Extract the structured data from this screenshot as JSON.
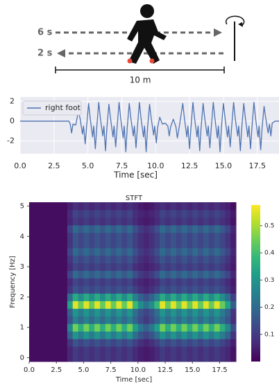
{
  "diagram": {
    "labels": [
      "6 s",
      "2 s",
      "10 m"
    ]
  },
  "chart_data": [
    {
      "type": "line",
      "xlabel": "Time [sec]",
      "x": [
        0,
        3.6,
        3.7,
        3.8,
        3.9,
        4.1,
        4.3,
        4.42,
        4.6,
        4.68,
        4.8,
        4.9,
        5.05,
        5.17,
        5.35,
        5.43,
        5.55,
        5.65,
        5.8,
        5.92,
        6.1,
        6.18,
        6.3,
        6.4,
        6.55,
        6.67,
        6.85,
        6.93,
        7.05,
        7.15,
        7.3,
        7.42,
        7.6,
        7.68,
        7.8,
        7.9,
        8.05,
        8.17,
        8.35,
        8.43,
        8.55,
        8.65,
        8.8,
        8.92,
        9.1,
        9.18,
        9.3,
        9.4,
        9.55,
        9.67,
        9.85,
        9.93,
        10.05,
        10.15,
        10.3,
        10.5,
        10.7,
        10.9,
        11.0,
        11.1,
        11.3,
        11.5,
        11.6,
        11.75,
        12.0,
        12.12,
        12.3,
        12.38,
        12.5,
        12.6,
        12.75,
        12.87,
        13.05,
        13.13,
        13.25,
        13.35,
        13.5,
        13.62,
        13.8,
        13.88,
        14.0,
        14.1,
        14.25,
        14.37,
        14.55,
        14.63,
        14.75,
        14.85,
        15.0,
        15.12,
        15.3,
        15.38,
        15.5,
        15.6,
        15.75,
        15.87,
        16.05,
        16.13,
        16.25,
        16.35,
        16.5,
        16.62,
        16.8,
        16.88,
        17.0,
        17.1,
        17.25,
        17.37,
        17.55,
        17.63,
        17.75,
        17.85,
        18.0,
        18.12,
        18.3,
        18.4,
        18.5,
        18.6,
        18.8,
        19.1
      ],
      "series": [
        {
          "name": "right foot",
          "color": "#4c72b0",
          "values": [
            0,
            0,
            -0.3,
            -1.2,
            -0.3,
            -0.4,
            1.0,
            0.3,
            -1.3,
            -0.5,
            -2.3,
            -0.7,
            1.8,
            0.3,
            -1.6,
            -0.5,
            -2.8,
            -0.7,
            1.9,
            0.3,
            -1.5,
            -0.5,
            -3.0,
            -0.7,
            1.7,
            0.3,
            -1.6,
            -0.5,
            -2.6,
            -0.7,
            1.9,
            0.3,
            -1.7,
            -0.5,
            -3.1,
            -0.7,
            1.8,
            0.3,
            -1.5,
            -0.5,
            -2.7,
            -0.7,
            1.9,
            0.3,
            -1.6,
            -0.5,
            -3.1,
            -0.7,
            1.7,
            0.3,
            -1.4,
            -0.5,
            -2.2,
            -0.6,
            0.4,
            -0.3,
            -0.2,
            -0.5,
            -1.5,
            -0.6,
            0.2,
            -0.6,
            -1.7,
            -0.5,
            1.8,
            0.3,
            -1.6,
            -0.5,
            -2.8,
            -0.7,
            1.9,
            0.3,
            -1.6,
            -0.5,
            -3.0,
            -0.7,
            1.8,
            0.3,
            -1.5,
            -0.5,
            -2.7,
            -0.7,
            1.9,
            0.3,
            -1.7,
            -0.5,
            -3.1,
            -0.7,
            1.8,
            0.3,
            -1.6,
            -0.5,
            -2.6,
            -0.7,
            1.9,
            0.3,
            -1.5,
            -0.5,
            -3.0,
            -0.7,
            1.8,
            0.3,
            -1.6,
            -0.5,
            -2.8,
            -0.7,
            1.9,
            0.3,
            -1.6,
            -0.5,
            -2.9,
            -0.7,
            1.5,
            0.3,
            -1.2,
            -0.3,
            -1.5,
            -0.2,
            0,
            0
          ]
        }
      ],
      "xlim": [
        0,
        19.1
      ],
      "ylim": [
        -3.3,
        2.45
      ],
      "xticks": [
        {
          "value": 0,
          "label": "0.0"
        },
        2.5,
        {
          "value": 5,
          "label": "5.0"
        },
        7.5,
        {
          "value": 10,
          "label": "10.0"
        },
        12.5,
        {
          "value": 15,
          "label": "15.0"
        },
        17.5
      ],
      "yticks": [
        -2,
        0,
        2
      ],
      "grid": true,
      "legend": "upper left"
    },
    {
      "type": "heatmap",
      "title": "STFT",
      "xlabel": "Time [sec]",
      "ylabel": "Frequency [Hz]",
      "x": [
        0.25,
        0.75,
        1.25,
        1.75,
        2.25,
        2.75,
        3.25,
        3.75,
        4.25,
        4.75,
        5.25,
        5.75,
        6.25,
        6.75,
        7.25,
        7.75,
        8.25,
        8.75,
        9.25,
        9.75,
        10.25,
        10.75,
        11.25,
        11.75,
        12.25,
        12.75,
        13.25,
        13.75,
        14.25,
        14.75,
        15.25,
        15.75,
        16.25,
        16.75,
        17.25,
        17.75,
        18.25,
        18.75
      ],
      "y": [
        0,
        0.25,
        0.5,
        0.75,
        1,
        1.25,
        1.5,
        1.75,
        2,
        2.25,
        2.5,
        2.75,
        3,
        3.25,
        3.5,
        3.75,
        4,
        4.25,
        4.5,
        4.75,
        5
      ],
      "z": [
        [
          0.02,
          0.02,
          0.02,
          0.02,
          0.02,
          0.02,
          0.02,
          0.06,
          0.1,
          0.08,
          0.1,
          0.08,
          0.1,
          0.08,
          0.1,
          0.08,
          0.1,
          0.08,
          0.1,
          0.07,
          0.05,
          0.04,
          0.05,
          0.07,
          0.1,
          0.08,
          0.1,
          0.08,
          0.1,
          0.08,
          0.1,
          0.08,
          0.1,
          0.08,
          0.1,
          0.08,
          0.06,
          0.03
        ],
        [
          0.02,
          0.02,
          0.02,
          0.02,
          0.02,
          0.02,
          0.02,
          0.06,
          0.1,
          0.08,
          0.1,
          0.08,
          0.1,
          0.08,
          0.1,
          0.08,
          0.1,
          0.08,
          0.1,
          0.07,
          0.05,
          0.04,
          0.05,
          0.07,
          0.1,
          0.08,
          0.1,
          0.08,
          0.1,
          0.08,
          0.1,
          0.08,
          0.1,
          0.08,
          0.1,
          0.08,
          0.06,
          0.03
        ],
        [
          0.02,
          0.02,
          0.02,
          0.02,
          0.02,
          0.02,
          0.02,
          0.09,
          0.15,
          0.12,
          0.15,
          0.12,
          0.15,
          0.12,
          0.15,
          0.12,
          0.15,
          0.12,
          0.15,
          0.11,
          0.08,
          0.06,
          0.08,
          0.11,
          0.15,
          0.12,
          0.15,
          0.12,
          0.15,
          0.12,
          0.15,
          0.12,
          0.15,
          0.12,
          0.15,
          0.12,
          0.09,
          0.05
        ],
        [
          0.02,
          0.02,
          0.02,
          0.02,
          0.02,
          0.02,
          0.02,
          0.18,
          0.3,
          0.24,
          0.3,
          0.24,
          0.3,
          0.24,
          0.3,
          0.24,
          0.3,
          0.24,
          0.3,
          0.21,
          0.15,
          0.12,
          0.15,
          0.21,
          0.3,
          0.24,
          0.3,
          0.24,
          0.3,
          0.24,
          0.3,
          0.24,
          0.3,
          0.24,
          0.3,
          0.24,
          0.18,
          0.09
        ],
        [
          0.02,
          0.02,
          0.02,
          0.02,
          0.02,
          0.02,
          0.02,
          0.27,
          0.45,
          0.36,
          0.45,
          0.36,
          0.45,
          0.36,
          0.45,
          0.36,
          0.45,
          0.36,
          0.45,
          0.32,
          0.23,
          0.18,
          0.23,
          0.32,
          0.45,
          0.36,
          0.45,
          0.36,
          0.45,
          0.36,
          0.45,
          0.36,
          0.45,
          0.36,
          0.45,
          0.36,
          0.27,
          0.14
        ],
        [
          0.02,
          0.02,
          0.02,
          0.02,
          0.02,
          0.02,
          0.02,
          0.15,
          0.25,
          0.2,
          0.25,
          0.2,
          0.25,
          0.2,
          0.25,
          0.2,
          0.25,
          0.2,
          0.25,
          0.18,
          0.13,
          0.1,
          0.13,
          0.18,
          0.25,
          0.2,
          0.25,
          0.2,
          0.25,
          0.2,
          0.25,
          0.2,
          0.25,
          0.2,
          0.25,
          0.2,
          0.15,
          0.08
        ],
        [
          0.02,
          0.02,
          0.02,
          0.02,
          0.02,
          0.02,
          0.02,
          0.18,
          0.3,
          0.24,
          0.3,
          0.24,
          0.3,
          0.24,
          0.3,
          0.24,
          0.3,
          0.24,
          0.3,
          0.21,
          0.15,
          0.12,
          0.15,
          0.21,
          0.3,
          0.24,
          0.3,
          0.24,
          0.3,
          0.24,
          0.3,
          0.24,
          0.3,
          0.24,
          0.3,
          0.24,
          0.18,
          0.09
        ],
        [
          0.02,
          0.02,
          0.02,
          0.02,
          0.02,
          0.02,
          0.02,
          0.33,
          0.55,
          0.44,
          0.55,
          0.44,
          0.55,
          0.44,
          0.55,
          0.44,
          0.55,
          0.44,
          0.55,
          0.39,
          0.28,
          0.22,
          0.28,
          0.39,
          0.55,
          0.44,
          0.55,
          0.44,
          0.55,
          0.44,
          0.55,
          0.44,
          0.55,
          0.44,
          0.55,
          0.44,
          0.33,
          0.17
        ],
        [
          0.02,
          0.02,
          0.02,
          0.02,
          0.02,
          0.02,
          0.02,
          0.21,
          0.35,
          0.28,
          0.35,
          0.28,
          0.35,
          0.28,
          0.35,
          0.28,
          0.35,
          0.28,
          0.35,
          0.25,
          0.18,
          0.14,
          0.18,
          0.25,
          0.35,
          0.28,
          0.35,
          0.28,
          0.35,
          0.28,
          0.35,
          0.28,
          0.35,
          0.28,
          0.35,
          0.28,
          0.21,
          0.11
        ],
        [
          0.02,
          0.02,
          0.02,
          0.02,
          0.02,
          0.02,
          0.02,
          0.09,
          0.15,
          0.12,
          0.15,
          0.12,
          0.15,
          0.12,
          0.15,
          0.12,
          0.15,
          0.12,
          0.15,
          0.11,
          0.08,
          0.06,
          0.08,
          0.11,
          0.15,
          0.12,
          0.15,
          0.12,
          0.15,
          0.12,
          0.15,
          0.12,
          0.15,
          0.12,
          0.15,
          0.12,
          0.09,
          0.05
        ],
        [
          0.02,
          0.02,
          0.02,
          0.02,
          0.02,
          0.02,
          0.02,
          0.07,
          0.12,
          0.1,
          0.12,
          0.1,
          0.12,
          0.1,
          0.12,
          0.1,
          0.12,
          0.1,
          0.12,
          0.08,
          0.06,
          0.05,
          0.06,
          0.08,
          0.12,
          0.1,
          0.12,
          0.1,
          0.12,
          0.1,
          0.12,
          0.1,
          0.12,
          0.1,
          0.12,
          0.1,
          0.07,
          0.04
        ],
        [
          0.02,
          0.02,
          0.02,
          0.02,
          0.02,
          0.02,
          0.02,
          0.12,
          0.2,
          0.16,
          0.2,
          0.16,
          0.2,
          0.16,
          0.2,
          0.16,
          0.2,
          0.16,
          0.2,
          0.14,
          0.1,
          0.08,
          0.1,
          0.14,
          0.2,
          0.16,
          0.2,
          0.16,
          0.2,
          0.16,
          0.2,
          0.16,
          0.2,
          0.16,
          0.2,
          0.16,
          0.12,
          0.06
        ],
        [
          0.02,
          0.02,
          0.02,
          0.02,
          0.02,
          0.02,
          0.02,
          0.07,
          0.12,
          0.1,
          0.12,
          0.1,
          0.12,
          0.1,
          0.12,
          0.1,
          0.12,
          0.1,
          0.12,
          0.08,
          0.06,
          0.05,
          0.06,
          0.08,
          0.12,
          0.1,
          0.12,
          0.1,
          0.12,
          0.1,
          0.12,
          0.1,
          0.12,
          0.1,
          0.12,
          0.1,
          0.07,
          0.04
        ],
        [
          0.02,
          0.02,
          0.02,
          0.02,
          0.02,
          0.02,
          0.02,
          0.09,
          0.15,
          0.12,
          0.15,
          0.12,
          0.15,
          0.12,
          0.15,
          0.12,
          0.15,
          0.12,
          0.15,
          0.11,
          0.08,
          0.06,
          0.08,
          0.11,
          0.15,
          0.12,
          0.15,
          0.12,
          0.15,
          0.12,
          0.15,
          0.12,
          0.15,
          0.12,
          0.15,
          0.12,
          0.09,
          0.05
        ],
        [
          0.02,
          0.02,
          0.02,
          0.02,
          0.02,
          0.02,
          0.02,
          0.12,
          0.2,
          0.16,
          0.2,
          0.16,
          0.2,
          0.16,
          0.2,
          0.16,
          0.2,
          0.16,
          0.2,
          0.14,
          0.1,
          0.08,
          0.1,
          0.14,
          0.2,
          0.16,
          0.2,
          0.16,
          0.2,
          0.16,
          0.2,
          0.16,
          0.2,
          0.16,
          0.2,
          0.16,
          0.12,
          0.06
        ],
        [
          0.02,
          0.02,
          0.02,
          0.02,
          0.02,
          0.02,
          0.02,
          0.09,
          0.15,
          0.12,
          0.15,
          0.12,
          0.15,
          0.12,
          0.15,
          0.12,
          0.15,
          0.12,
          0.15,
          0.11,
          0.08,
          0.06,
          0.08,
          0.11,
          0.15,
          0.12,
          0.15,
          0.12,
          0.15,
          0.12,
          0.15,
          0.12,
          0.15,
          0.12,
          0.15,
          0.12,
          0.09,
          0.05
        ],
        [
          0.02,
          0.02,
          0.02,
          0.02,
          0.02,
          0.02,
          0.02,
          0.09,
          0.15,
          0.12,
          0.15,
          0.12,
          0.15,
          0.12,
          0.15,
          0.12,
          0.15,
          0.12,
          0.15,
          0.11,
          0.08,
          0.06,
          0.08,
          0.11,
          0.15,
          0.12,
          0.15,
          0.12,
          0.15,
          0.12,
          0.15,
          0.12,
          0.15,
          0.12,
          0.15,
          0.12,
          0.09,
          0.05
        ],
        [
          0.02,
          0.02,
          0.02,
          0.02,
          0.02,
          0.02,
          0.02,
          0.12,
          0.2,
          0.16,
          0.2,
          0.16,
          0.2,
          0.16,
          0.2,
          0.16,
          0.2,
          0.16,
          0.2,
          0.14,
          0.1,
          0.08,
          0.1,
          0.14,
          0.2,
          0.16,
          0.2,
          0.16,
          0.2,
          0.16,
          0.2,
          0.16,
          0.2,
          0.16,
          0.2,
          0.16,
          0.12,
          0.06
        ],
        [
          0.02,
          0.02,
          0.02,
          0.02,
          0.02,
          0.02,
          0.02,
          0.06,
          0.1,
          0.08,
          0.1,
          0.08,
          0.1,
          0.08,
          0.1,
          0.08,
          0.1,
          0.08,
          0.1,
          0.07,
          0.05,
          0.04,
          0.05,
          0.07,
          0.1,
          0.08,
          0.1,
          0.08,
          0.1,
          0.08,
          0.1,
          0.08,
          0.1,
          0.08,
          0.1,
          0.08,
          0.06,
          0.03
        ],
        [
          0.02,
          0.02,
          0.02,
          0.02,
          0.02,
          0.02,
          0.02,
          0.07,
          0.12,
          0.1,
          0.12,
          0.1,
          0.12,
          0.1,
          0.12,
          0.1,
          0.12,
          0.1,
          0.12,
          0.08,
          0.06,
          0.05,
          0.06,
          0.08,
          0.12,
          0.1,
          0.12,
          0.1,
          0.12,
          0.1,
          0.12,
          0.1,
          0.12,
          0.1,
          0.12,
          0.1,
          0.07,
          0.04
        ],
        [
          0.02,
          0.02,
          0.02,
          0.02,
          0.02,
          0.02,
          0.02,
          0.05,
          0.08,
          0.06,
          0.08,
          0.06,
          0.08,
          0.06,
          0.08,
          0.06,
          0.08,
          0.06,
          0.08,
          0.06,
          0.04,
          0.03,
          0.04,
          0.06,
          0.08,
          0.06,
          0.08,
          0.06,
          0.08,
          0.06,
          0.08,
          0.06,
          0.08,
          0.06,
          0.08,
          0.06,
          0.05,
          0.02
        ]
      ],
      "xlim": [
        0,
        19
      ],
      "ylim": [
        -0.125,
        5.125
      ],
      "xticks": [
        {
          "value": 0,
          "label": "0.0"
        },
        2.5,
        {
          "value": 5,
          "label": "5.0"
        },
        7.5,
        {
          "value": 10,
          "label": "10.0"
        },
        12.5,
        {
          "value": 15,
          "label": "15.0"
        },
        17.5
      ],
      "yticks": [
        0,
        1,
        2,
        3,
        4,
        5
      ],
      "colormap": "viridis",
      "clim": [
        0,
        0.576
      ],
      "cticks": [
        0.1,
        0.2,
        0.3,
        0.4,
        0.5
      ]
    }
  ]
}
